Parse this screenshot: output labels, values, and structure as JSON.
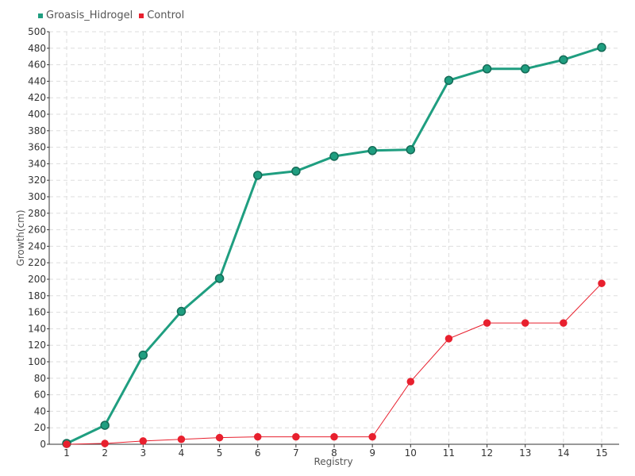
{
  "chart_data": {
    "type": "line",
    "x": [
      1,
      2,
      3,
      4,
      5,
      6,
      7,
      8,
      9,
      10,
      11,
      12,
      13,
      14,
      15
    ],
    "series": [
      {
        "name": "Groasis_Hidrogel",
        "color": "#1f9e80",
        "values": [
          1,
          23,
          108,
          161,
          201,
          326,
          331,
          349,
          356,
          357,
          441,
          455,
          455,
          466,
          481
        ]
      },
      {
        "name": "Control",
        "color": "#e8202e",
        "values": [
          0,
          1,
          4,
          6,
          8,
          9,
          9,
          9,
          9,
          76,
          128,
          147,
          147,
          147,
          195
        ]
      }
    ],
    "xlabel": "Registry",
    "ylabel": "Growth(cm)",
    "ylim": [
      0,
      500
    ],
    "ytick_step": 20,
    "grid": true,
    "legend_position": "top-left"
  }
}
